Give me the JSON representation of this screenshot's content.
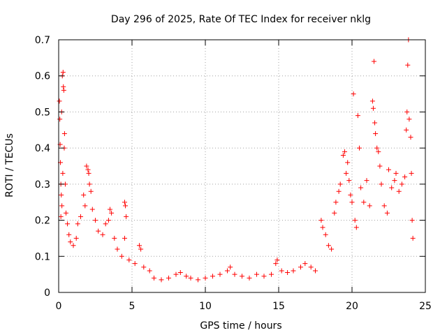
{
  "chart_data": {
    "type": "scatter",
    "title": "Day 296 of 2025, Rate Of TEC Index for receiver nklg",
    "xlabel": "GPS time / hours",
    "ylabel": "ROTI / TECUs",
    "xlim": [
      0,
      25
    ],
    "ylim": [
      0,
      0.7
    ],
    "x_ticks": [
      "0",
      "5",
      "10",
      "15",
      "20",
      "25"
    ],
    "y_ticks": [
      "0",
      "0.1",
      "0.2",
      "0.3",
      "0.4",
      "0.5",
      "0.6",
      "0.7"
    ],
    "grid": true,
    "marker": "plus",
    "color": "#ff0000",
    "series": [
      {
        "points": [
          [
            0.05,
            0.53
          ],
          [
            0.08,
            0.48
          ],
          [
            0.1,
            0.41
          ],
          [
            0.12,
            0.36
          ],
          [
            0.15,
            0.3
          ],
          [
            0.18,
            0.27
          ],
          [
            0.2,
            0.5
          ],
          [
            0.22,
            0.24
          ],
          [
            0.25,
            0.6
          ],
          [
            0.3,
            0.61
          ],
          [
            0.32,
            0.57
          ],
          [
            0.35,
            0.56
          ],
          [
            0.4,
            0.44
          ],
          [
            0.38,
            0.4
          ],
          [
            0.45,
            0.3
          ],
          [
            0.5,
            0.22
          ],
          [
            0.28,
            0.33
          ],
          [
            0.15,
            0.21
          ],
          [
            0.6,
            0.19
          ],
          [
            0.7,
            0.16
          ],
          [
            0.8,
            0.14
          ],
          [
            1.0,
            0.13
          ],
          [
            1.2,
            0.15
          ],
          [
            1.3,
            0.19
          ],
          [
            1.5,
            0.21
          ],
          [
            1.7,
            0.27
          ],
          [
            1.8,
            0.24
          ],
          [
            1.9,
            0.35
          ],
          [
            2.0,
            0.34
          ],
          [
            2.05,
            0.33
          ],
          [
            2.1,
            0.3
          ],
          [
            2.2,
            0.28
          ],
          [
            2.3,
            0.23
          ],
          [
            2.5,
            0.2
          ],
          [
            2.7,
            0.17
          ],
          [
            3.0,
            0.16
          ],
          [
            3.2,
            0.19
          ],
          [
            3.4,
            0.2
          ],
          [
            3.5,
            0.23
          ],
          [
            3.6,
            0.22
          ],
          [
            3.8,
            0.15
          ],
          [
            4.0,
            0.12
          ],
          [
            4.3,
            0.1
          ],
          [
            4.5,
            0.25
          ],
          [
            4.55,
            0.24
          ],
          [
            4.6,
            0.21
          ],
          [
            4.5,
            0.15
          ],
          [
            4.8,
            0.09
          ],
          [
            5.2,
            0.08
          ],
          [
            5.5,
            0.13
          ],
          [
            5.6,
            0.12
          ],
          [
            5.8,
            0.07
          ],
          [
            6.2,
            0.06
          ],
          [
            6.5,
            0.04
          ],
          [
            7.0,
            0.035
          ],
          [
            7.5,
            0.04
          ],
          [
            8.0,
            0.05
          ],
          [
            8.3,
            0.055
          ],
          [
            8.7,
            0.045
          ],
          [
            9.0,
            0.04
          ],
          [
            9.5,
            0.035
          ],
          [
            10.0,
            0.04
          ],
          [
            10.5,
            0.045
          ],
          [
            11.0,
            0.05
          ],
          [
            11.5,
            0.06
          ],
          [
            11.7,
            0.07
          ],
          [
            12.0,
            0.05
          ],
          [
            12.5,
            0.045
          ],
          [
            13.0,
            0.04
          ],
          [
            13.5,
            0.05
          ],
          [
            14.0,
            0.045
          ],
          [
            14.5,
            0.05
          ],
          [
            14.8,
            0.08
          ],
          [
            14.9,
            0.09
          ],
          [
            15.2,
            0.06
          ],
          [
            15.6,
            0.055
          ],
          [
            16.0,
            0.06
          ],
          [
            16.5,
            0.07
          ],
          [
            16.8,
            0.08
          ],
          [
            17.2,
            0.07
          ],
          [
            17.5,
            0.06
          ],
          [
            17.9,
            0.2
          ],
          [
            18.0,
            0.18
          ],
          [
            18.2,
            0.16
          ],
          [
            18.4,
            0.13
          ],
          [
            18.6,
            0.12
          ],
          [
            18.8,
            0.22
          ],
          [
            18.9,
            0.25
          ],
          [
            19.1,
            0.28
          ],
          [
            19.2,
            0.3
          ],
          [
            19.4,
            0.38
          ],
          [
            19.5,
            0.39
          ],
          [
            19.6,
            0.33
          ],
          [
            19.7,
            0.36
          ],
          [
            19.8,
            0.31
          ],
          [
            19.9,
            0.27
          ],
          [
            20.0,
            0.25
          ],
          [
            20.1,
            0.55
          ],
          [
            20.2,
            0.2
          ],
          [
            20.3,
            0.18
          ],
          [
            20.4,
            0.49
          ],
          [
            20.5,
            0.4
          ],
          [
            20.6,
            0.29
          ],
          [
            20.8,
            0.25
          ],
          [
            21.0,
            0.31
          ],
          [
            21.2,
            0.24
          ],
          [
            21.4,
            0.53
          ],
          [
            21.45,
            0.51
          ],
          [
            21.5,
            0.64
          ],
          [
            21.55,
            0.47
          ],
          [
            21.6,
            0.44
          ],
          [
            21.7,
            0.4
          ],
          [
            21.8,
            0.39
          ],
          [
            21.9,
            0.35
          ],
          [
            22.0,
            0.3
          ],
          [
            22.2,
            0.24
          ],
          [
            22.4,
            0.22
          ],
          [
            22.5,
            0.34
          ],
          [
            22.7,
            0.29
          ],
          [
            22.9,
            0.31
          ],
          [
            23.0,
            0.33
          ],
          [
            23.2,
            0.28
          ],
          [
            23.4,
            0.3
          ],
          [
            23.6,
            0.32
          ],
          [
            23.7,
            0.45
          ],
          [
            23.75,
            0.5
          ],
          [
            23.8,
            0.63
          ],
          [
            23.85,
            0.7
          ],
          [
            23.9,
            0.48
          ],
          [
            24.0,
            0.43
          ],
          [
            24.05,
            0.33
          ],
          [
            24.1,
            0.2
          ],
          [
            24.15,
            0.15
          ]
        ]
      }
    ]
  }
}
